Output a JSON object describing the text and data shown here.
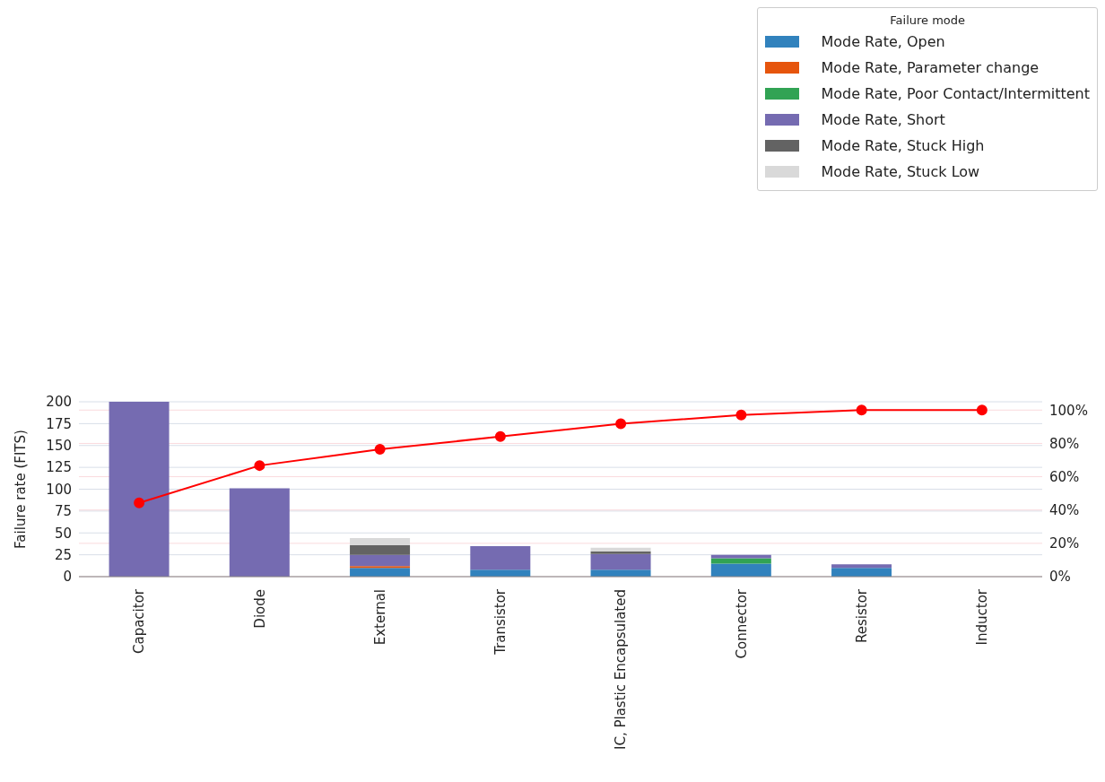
{
  "chart_data": {
    "type": "bar",
    "ylabel": "Failure rate (FITS)",
    "legend_title": "Failure mode",
    "stacked": true,
    "categories": [
      "Capacitor",
      "Diode",
      "External",
      "Transistor",
      "IC, Plastic Encapsulated",
      "Connector",
      "Resistor",
      "Inductor"
    ],
    "series": [
      {
        "name": "Mode Rate, Open",
        "color": "#3182bd",
        "values": [
          0,
          0,
          10,
          8,
          8,
          15,
          10,
          0
        ]
      },
      {
        "name": "Mode Rate, Parameter change",
        "color": "#e6550d",
        "values": [
          0,
          0,
          2,
          0,
          0,
          0,
          0,
          0
        ]
      },
      {
        "name": "Mode Rate, Poor Contact/Intermittent",
        "color": "#31a354",
        "values": [
          0,
          0,
          0,
          0,
          0,
          6,
          0,
          0
        ]
      },
      {
        "name": "Mode Rate, Short",
        "color": "#756bb1",
        "values": [
          200,
          101,
          13,
          27,
          18,
          4,
          4,
          0
        ]
      },
      {
        "name": "Mode Rate, Stuck High",
        "color": "#636363",
        "values": [
          0,
          0,
          11,
          0,
          3,
          0,
          0,
          0
        ]
      },
      {
        "name": "Mode Rate, Stuck Low",
        "color": "#d9d9d9",
        "values": [
          0,
          0,
          8,
          0,
          4,
          0,
          0,
          0
        ]
      },
      {
        "type": "line",
        "axis": "y2",
        "color": "#ff0000",
        "marker": "circle",
        "values": [
          44.3,
          66.7,
          76.4,
          84.1,
          91.8,
          97.1,
          100,
          100
        ]
      }
    ],
    "ylim": [
      0,
      200
    ],
    "yticks": [
      0,
      25,
      50,
      75,
      100,
      125,
      150,
      175,
      200
    ],
    "y2lim": [
      0,
      105
    ],
    "y2ticks": [
      {
        "value": 0,
        "label": "0%"
      },
      {
        "value": 20,
        "label": "20%"
      },
      {
        "value": 40,
        "label": "40%"
      },
      {
        "value": 60,
        "label": "60%"
      },
      {
        "value": 80,
        "label": "80%"
      },
      {
        "value": 100,
        "label": "100%"
      }
    ],
    "grid": true,
    "legend": "top right"
  }
}
